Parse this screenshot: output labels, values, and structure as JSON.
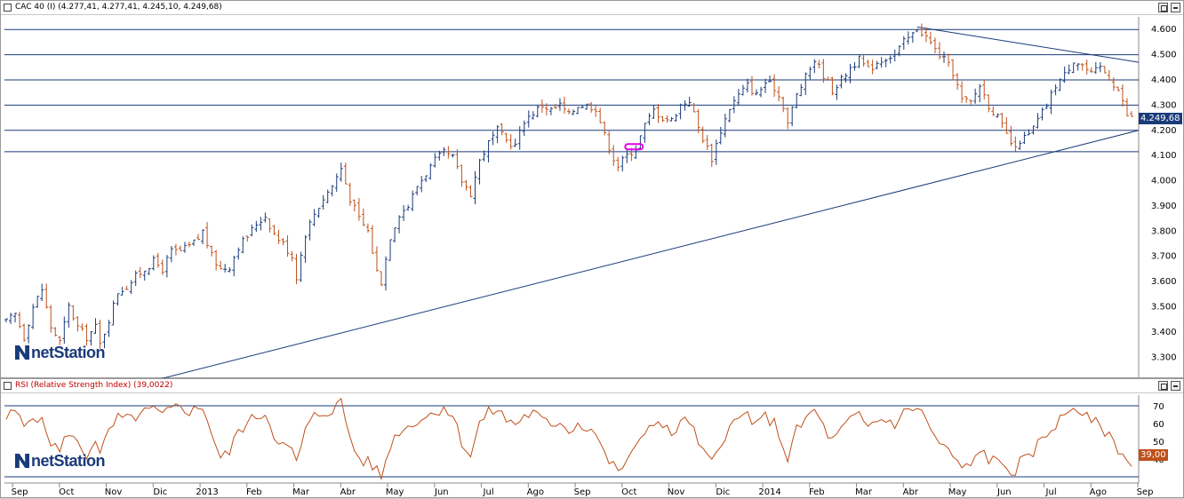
{
  "price_panel": {
    "title": "CAC 40 (I) (4.277,41, 4.277,41, 4.245,10, 4.249,68)",
    "last_value": "4.249,68",
    "last_value_color": "#1a3b7a",
    "watermark": "netStation"
  },
  "rsi_panel": {
    "title": "RSI (Relative Strength Index) (39,0022)",
    "last_value": "39,00",
    "last_value_color": "#c0501a",
    "watermark": "netStation"
  },
  "colors": {
    "up_bar": "#1a3b7a",
    "down_bar": "#c0501a",
    "rsi_line": "#c0501a",
    "trendline": "#1a3b7a",
    "marker": "#e000e0"
  },
  "x_axis_labels": [
    "Sep",
    "Oct",
    "Nov",
    "Dic",
    "2013",
    "Feb",
    "Mar",
    "Abr",
    "May",
    "Jun",
    "Jul",
    "Ago",
    "Sep",
    "Oct",
    "Nov",
    "Dic",
    "2014",
    "Feb",
    "Mar",
    "Abr",
    "May",
    "Jun",
    "Jul",
    "Ago",
    "Sep"
  ],
  "chart_data": [
    {
      "type": "ohlc",
      "title": "CAC 40 (I)",
      "ylim": [
        3220,
        4650
      ],
      "y_ticks": [
        "4.600",
        "4.500",
        "4.400",
        "4.300",
        "4.200",
        "4.100",
        "4.000",
        "3.900",
        "3.800",
        "3.700",
        "3.600",
        "3.500",
        "3.400",
        "3.300"
      ],
      "y_tick_values": [
        4600,
        4500,
        4400,
        4300,
        4200,
        4100,
        4000,
        3900,
        3800,
        3700,
        3600,
        3500,
        3400,
        3300
      ],
      "horizontal_lines": [
        4600,
        4500,
        4400,
        4300,
        4200,
        4115
      ],
      "close_path": [
        [
          0,
          3440
        ],
        [
          2,
          3470
        ],
        [
          4,
          3380
        ],
        [
          6,
          3500
        ],
        [
          8,
          3570
        ],
        [
          10,
          3420
        ],
        [
          12,
          3360
        ],
        [
          14,
          3500
        ],
        [
          16,
          3420
        ],
        [
          18,
          3380
        ],
        [
          20,
          3420
        ],
        [
          21,
          3350
        ],
        [
          23,
          3450
        ],
        [
          25,
          3560
        ],
        [
          27,
          3580
        ],
        [
          29,
          3620
        ],
        [
          31,
          3650
        ],
        [
          33,
          3680
        ],
        [
          35,
          3650
        ],
        [
          37,
          3720
        ],
        [
          39,
          3720
        ],
        [
          41,
          3740
        ],
        [
          43,
          3770
        ],
        [
          44,
          3800
        ],
        [
          46,
          3700
        ],
        [
          48,
          3650
        ],
        [
          50,
          3660
        ],
        [
          52,
          3740
        ],
        [
          54,
          3780
        ],
        [
          56,
          3830
        ],
        [
          58,
          3860
        ],
        [
          60,
          3790
        ],
        [
          62,
          3750
        ],
        [
          64,
          3700
        ],
        [
          65,
          3620
        ],
        [
          67,
          3790
        ],
        [
          69,
          3870
        ],
        [
          71,
          3930
        ],
        [
          73,
          3980
        ],
        [
          75,
          4050
        ],
        [
          77,
          3930
        ],
        [
          79,
          3850
        ],
        [
          81,
          3800
        ],
        [
          83,
          3640
        ],
        [
          84,
          3600
        ],
        [
          86,
          3780
        ],
        [
          88,
          3870
        ],
        [
          90,
          3900
        ],
        [
          92,
          3980
        ],
        [
          94,
          4030
        ],
        [
          96,
          4080
        ],
        [
          98,
          4110
        ],
        [
          100,
          4090
        ],
        [
          102,
          4000
        ],
        [
          104,
          3950
        ],
        [
          106,
          4080
        ],
        [
          108,
          4150
        ],
        [
          110,
          4200
        ],
        [
          112,
          4160
        ],
        [
          114,
          4140
        ],
        [
          116,
          4240
        ],
        [
          118,
          4270
        ],
        [
          120,
          4300
        ],
        [
          122,
          4280
        ],
        [
          124,
          4300
        ],
        [
          126,
          4260
        ],
        [
          128,
          4300
        ],
        [
          130,
          4300
        ],
        [
          132,
          4290
        ],
        [
          134,
          4180
        ],
        [
          136,
          4090
        ],
        [
          137,
          4060
        ],
        [
          139,
          4100
        ],
        [
          141,
          4130
        ],
        [
          143,
          4220
        ],
        [
          145,
          4280
        ],
        [
          147,
          4250
        ],
        [
          149,
          4240
        ],
        [
          151,
          4300
        ],
        [
          153,
          4320
        ],
        [
          155,
          4210
        ],
        [
          157,
          4130
        ],
        [
          158,
          4090
        ],
        [
          160,
          4200
        ],
        [
          162,
          4290
        ],
        [
          164,
          4340
        ],
        [
          166,
          4380
        ],
        [
          168,
          4340
        ],
        [
          170,
          4390
        ],
        [
          172,
          4370
        ],
        [
          174,
          4300
        ],
        [
          175,
          4230
        ],
        [
          177,
          4340
        ],
        [
          179,
          4410
        ],
        [
          181,
          4480
        ],
        [
          183,
          4420
        ],
        [
          185,
          4360
        ],
        [
          187,
          4400
        ],
        [
          189,
          4450
        ],
        [
          191,
          4480
        ],
        [
          193,
          4440
        ],
        [
          195,
          4470
        ],
        [
          197,
          4490
        ],
        [
          199,
          4500
        ],
        [
          201,
          4550
        ],
        [
          203,
          4580
        ],
        [
          204,
          4610
        ],
        [
          206,
          4570
        ],
        [
          208,
          4520
        ],
        [
          210,
          4480
        ],
        [
          212,
          4430
        ],
        [
          214,
          4320
        ],
        [
          216,
          4310
        ],
        [
          218,
          4380
        ],
        [
          220,
          4300
        ],
        [
          222,
          4250
        ],
        [
          224,
          4180
        ],
        [
          226,
          4120
        ],
        [
          227,
          4160
        ],
        [
          229,
          4180
        ],
        [
          231,
          4240
        ],
        [
          233,
          4300
        ],
        [
          235,
          4380
        ],
        [
          237,
          4420
        ],
        [
          239,
          4480
        ],
        [
          241,
          4460
        ],
        [
          243,
          4420
        ],
        [
          245,
          4450
        ],
        [
          247,
          4410
        ],
        [
          249,
          4360
        ],
        [
          250,
          4310
        ],
        [
          251,
          4260
        ],
        [
          252,
          4250
        ]
      ]
    },
    {
      "type": "line",
      "title": "RSI (Relative Strength Index)",
      "ylim": [
        27,
        76
      ],
      "y_ticks": [
        "70",
        "60",
        "50",
        "40"
      ],
      "y_tick_values": [
        70,
        60,
        50,
        40
      ],
      "horizontal_lines": [
        70,
        30
      ],
      "values_path": [
        [
          0,
          63
        ],
        [
          2,
          67
        ],
        [
          4,
          58
        ],
        [
          6,
          66
        ],
        [
          8,
          60
        ],
        [
          10,
          50
        ],
        [
          12,
          44
        ],
        [
          14,
          56
        ],
        [
          16,
          48
        ],
        [
          18,
          42
        ],
        [
          20,
          52
        ],
        [
          21,
          42
        ],
        [
          23,
          55
        ],
        [
          25,
          63
        ],
        [
          27,
          62
        ],
        [
          29,
          64
        ],
        [
          31,
          66
        ],
        [
          33,
          68
        ],
        [
          35,
          64
        ],
        [
          37,
          68
        ],
        [
          39,
          70
        ],
        [
          41,
          67
        ],
        [
          43,
          68
        ],
        [
          44,
          70
        ],
        [
          46,
          55
        ],
        [
          48,
          40
        ],
        [
          50,
          44
        ],
        [
          52,
          56
        ],
        [
          54,
          60
        ],
        [
          56,
          64
        ],
        [
          58,
          66
        ],
        [
          60,
          54
        ],
        [
          62,
          48
        ],
        [
          64,
          44
        ],
        [
          65,
          38
        ],
        [
          67,
          56
        ],
        [
          69,
          64
        ],
        [
          71,
          66
        ],
        [
          73,
          68
        ],
        [
          75,
          72
        ],
        [
          77,
          52
        ],
        [
          79,
          40
        ],
        [
          81,
          38
        ],
        [
          83,
          34
        ],
        [
          84,
          30
        ],
        [
          86,
          48
        ],
        [
          88,
          56
        ],
        [
          90,
          58
        ],
        [
          92,
          62
        ],
        [
          94,
          64
        ],
        [
          96,
          66
        ],
        [
          98,
          70
        ],
        [
          100,
          64
        ],
        [
          102,
          50
        ],
        [
          104,
          42
        ],
        [
          106,
          60
        ],
        [
          108,
          66
        ],
        [
          110,
          68
        ],
        [
          112,
          62
        ],
        [
          114,
          60
        ],
        [
          116,
          64
        ],
        [
          118,
          66
        ],
        [
          120,
          62
        ],
        [
          122,
          58
        ],
        [
          124,
          62
        ],
        [
          126,
          56
        ],
        [
          128,
          60
        ],
        [
          130,
          58
        ],
        [
          132,
          55
        ],
        [
          134,
          42
        ],
        [
          136,
          36
        ],
        [
          137,
          32
        ],
        [
          139,
          40
        ],
        [
          141,
          45
        ],
        [
          143,
          56
        ],
        [
          145,
          62
        ],
        [
          147,
          58
        ],
        [
          149,
          54
        ],
        [
          151,
          60
        ],
        [
          153,
          62
        ],
        [
          155,
          48
        ],
        [
          157,
          40
        ],
        [
          158,
          38
        ],
        [
          160,
          50
        ],
        [
          162,
          58
        ],
        [
          164,
          62
        ],
        [
          166,
          66
        ],
        [
          168,
          58
        ],
        [
          170,
          64
        ],
        [
          172,
          60
        ],
        [
          174,
          48
        ],
        [
          175,
          40
        ],
        [
          177,
          56
        ],
        [
          179,
          62
        ],
        [
          181,
          68
        ],
        [
          183,
          58
        ],
        [
          185,
          50
        ],
        [
          187,
          56
        ],
        [
          189,
          62
        ],
        [
          191,
          64
        ],
        [
          193,
          58
        ],
        [
          195,
          62
        ],
        [
          197,
          62
        ],
        [
          199,
          60
        ],
        [
          201,
          66
        ],
        [
          203,
          68
        ],
        [
          204,
          70
        ],
        [
          206,
          62
        ],
        [
          208,
          52
        ],
        [
          210,
          46
        ],
        [
          212,
          42
        ],
        [
          214,
          34
        ],
        [
          216,
          36
        ],
        [
          218,
          46
        ],
        [
          220,
          40
        ],
        [
          222,
          38
        ],
        [
          224,
          36
        ],
        [
          226,
          32
        ],
        [
          227,
          38
        ],
        [
          229,
          40
        ],
        [
          231,
          48
        ],
        [
          233,
          54
        ],
        [
          235,
          60
        ],
        [
          237,
          64
        ],
        [
          239,
          70
        ],
        [
          241,
          66
        ],
        [
          243,
          60
        ],
        [
          245,
          60
        ],
        [
          247,
          52
        ],
        [
          249,
          46
        ],
        [
          250,
          42
        ],
        [
          251,
          38
        ],
        [
          252,
          39
        ]
      ]
    }
  ]
}
